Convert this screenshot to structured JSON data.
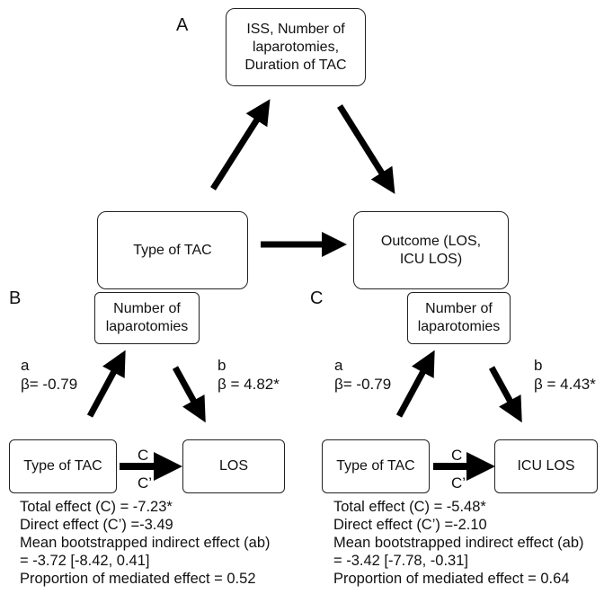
{
  "panel_a": {
    "letter": "A",
    "top_box": [
      "ISS, Number of",
      "laparotomies,",
      "Duration of TAC"
    ],
    "left_box": "Type of TAC",
    "right_box": [
      "Outcome (LOS,",
      "ICU LOS)"
    ]
  },
  "panel_b": {
    "letter": "B",
    "mediator": [
      "Number of",
      "laparotomies"
    ],
    "a_letter": "a",
    "a_value": "β= -0.79",
    "b_letter": "b",
    "b_value": "β = 4.82*",
    "predictor": "Type of TAC",
    "outcome": "LOS",
    "c_label": "C",
    "c_prime_label": "C’",
    "stats": [
      "Total effect (C) = -7.23*",
      "Direct effect (C’) =-3.49",
      "Mean bootstrapped indirect effect (ab)",
      "= -3.72 [-8.42, 0.41]",
      "Proportion of mediated effect = 0.52"
    ]
  },
  "panel_c": {
    "letter": "C",
    "mediator": [
      "Number of",
      "laparotomies"
    ],
    "a_letter": "a",
    "a_value": "β= -0.79",
    "b_letter": "b",
    "b_value": "β = 4.43*",
    "predictor": "Type of TAC",
    "outcome": "ICU LOS",
    "c_label": "C",
    "c_prime_label": "C’",
    "stats": [
      "Total effect (C) = -5.48*",
      "Direct effect (C’) =-2.10",
      "Mean bootstrapped indirect effect (ab)",
      "= -3.42 [-7.78, -0.31]",
      "Proportion of mediated effect = 0.64"
    ]
  }
}
